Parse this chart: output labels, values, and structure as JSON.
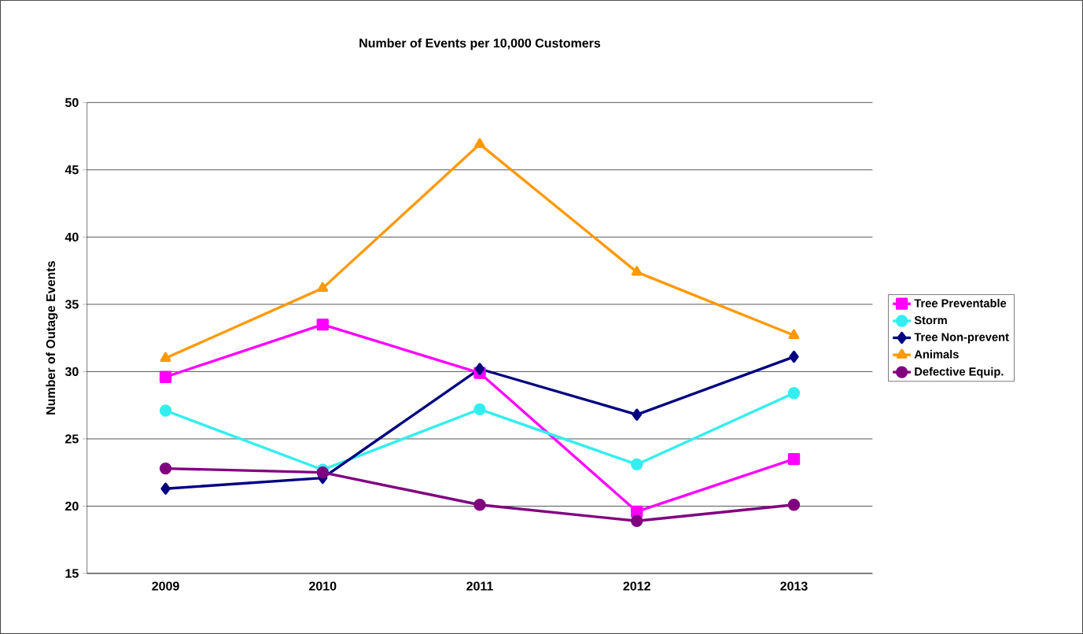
{
  "chart_data": {
    "type": "line",
    "title": "Number of Events per 10,000 Customers",
    "ylabel": "Number of Outage Events",
    "categories": [
      "2009",
      "2010",
      "2011",
      "2012",
      "2013"
    ],
    "series": [
      {
        "name": "Tree Preventable",
        "color": "#ff00ff",
        "marker": "square",
        "values": [
          29.6,
          33.5,
          29.9,
          19.6,
          23.5
        ]
      },
      {
        "name": "Storm",
        "color": "#33eeee",
        "marker": "circle",
        "values": [
          27.1,
          22.7,
          27.2,
          23.1,
          28.4
        ]
      },
      {
        "name": "Tree Non-prevent",
        "color": "#000080",
        "marker": "diamond",
        "values": [
          21.3,
          22.1,
          30.2,
          26.8,
          31.1
        ]
      },
      {
        "name": "Animals",
        "color": "#ff9900",
        "marker": "triangle",
        "values": [
          31.0,
          36.2,
          46.9,
          37.4,
          32.7
        ]
      },
      {
        "name": "Defective Equip.",
        "color": "#800080",
        "marker": "circle",
        "values": [
          22.8,
          22.5,
          20.1,
          18.9,
          20.1
        ]
      }
    ],
    "ylim": [
      15,
      50
    ],
    "yticks": [
      15,
      20,
      25,
      30,
      35,
      40,
      45,
      50
    ],
    "grid": "y",
    "legend": "right",
    "line_style": "solid"
  }
}
